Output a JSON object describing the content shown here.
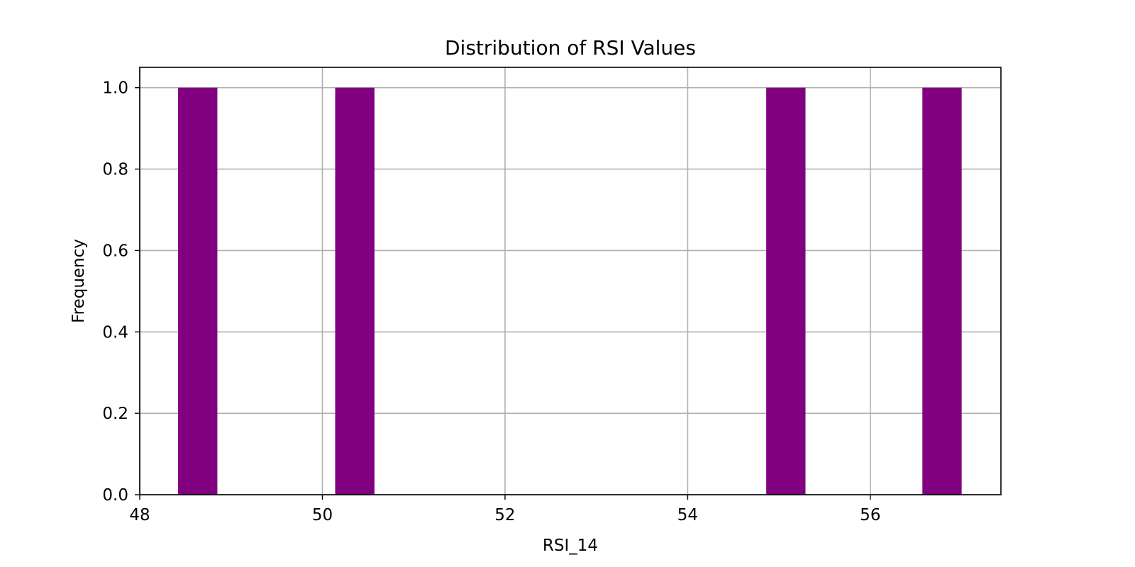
{
  "chart_data": {
    "type": "bar",
    "title": "Distribution of RSI Values",
    "xlabel": "RSI_14",
    "ylabel": "Frequency",
    "bins": [
      {
        "start": 48.42,
        "end": 48.85,
        "count": 1
      },
      {
        "start": 50.14,
        "end": 50.57,
        "count": 1
      },
      {
        "start": 54.86,
        "end": 55.29,
        "count": 1
      },
      {
        "start": 56.57,
        "end": 57.0,
        "count": 1
      }
    ],
    "xlim": [
      48.0,
      57.43
    ],
    "ylim": [
      0,
      1.05
    ],
    "xticks": [
      48,
      50,
      52,
      54,
      56
    ],
    "yticks": [
      0.0,
      0.2,
      0.4,
      0.6,
      0.8,
      1.0
    ],
    "grid": true,
    "bar_color": "#800080",
    "grid_color": "#b0b0b0"
  }
}
